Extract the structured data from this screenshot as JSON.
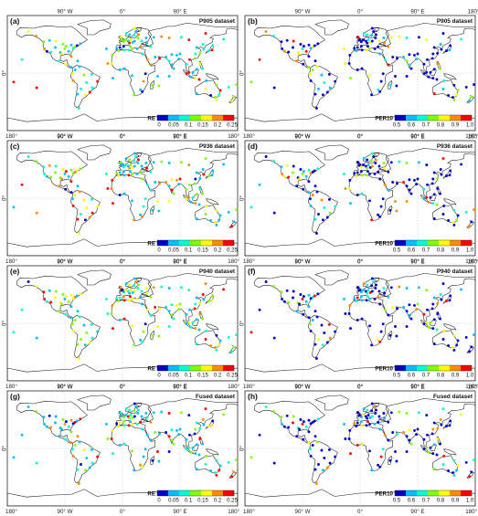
{
  "figure": {
    "lon_ticks": [
      "180°",
      "90° W",
      "0°",
      "90° E",
      "180°"
    ],
    "lat_tick": "0°",
    "panels": [
      {
        "letter": "(a)",
        "dataset": "P905 dataset",
        "metric": "RE"
      },
      {
        "letter": "(b)",
        "dataset": "P905 dataset",
        "metric": "PER10"
      },
      {
        "letter": "(c)",
        "dataset": "P936 dataset",
        "metric": "RE"
      },
      {
        "letter": "(d)",
        "dataset": "P936 dataset",
        "metric": "PER10"
      },
      {
        "letter": "(e)",
        "dataset": "P940 dataset",
        "metric": "RE"
      },
      {
        "letter": "(f)",
        "dataset": "P940 dataset",
        "metric": "PER10"
      },
      {
        "letter": "(g)",
        "dataset": "Fused dataset",
        "metric": "RE"
      },
      {
        "letter": "(h)",
        "dataset": "Fused dataset",
        "metric": "PER10"
      }
    ],
    "colorbars": {
      "RE": {
        "label": "RE",
        "ticks": [
          "0",
          "0.05",
          "0.1",
          "0.15",
          "0.2",
          "0.25"
        ],
        "colors": [
          "#0000cd",
          "#00bfff",
          "#00ffd0",
          "#7fff00",
          "#ffff00",
          "#ff8c00",
          "#ff0000"
        ]
      },
      "PER10": {
        "label": "PER10",
        "ticks": [
          "0.5",
          "0.6",
          "0.7",
          "0.8",
          "0.9",
          "1.0"
        ],
        "colors": [
          "#0000cd",
          "#00bfff",
          "#00ffd0",
          "#7fff00",
          "#ffff00",
          "#ff8c00",
          "#ff0000"
        ]
      }
    }
  }
}
